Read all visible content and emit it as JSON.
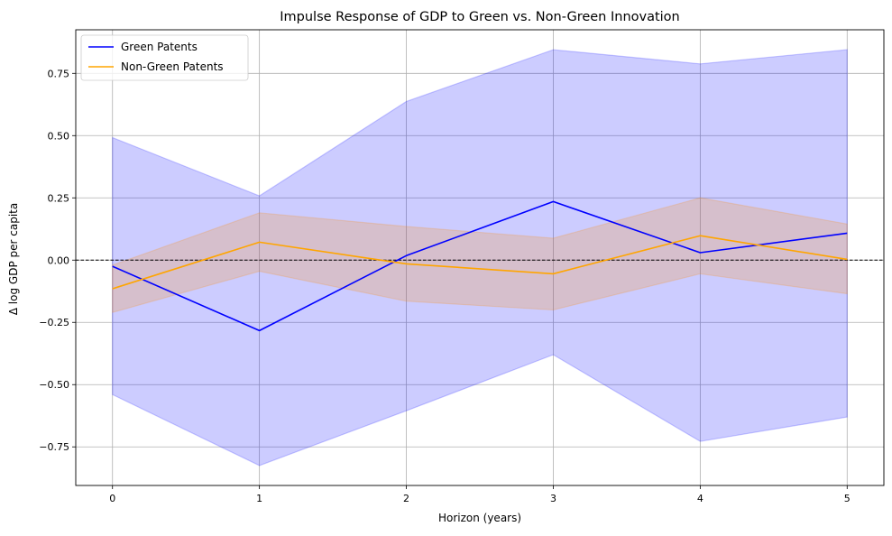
{
  "chart_data": {
    "type": "line",
    "title": "Impulse Response of GDP to Green vs. Non-Green Innovation",
    "xlabel": "Horizon (years)",
    "ylabel": "Δ log GDP per capita",
    "x": [
      0,
      1,
      2,
      3,
      4,
      5
    ],
    "xlim": [
      -0.25,
      5.25
    ],
    "ylim": [
      -0.905,
      0.925
    ],
    "xticks": [
      0,
      1,
      2,
      3,
      4,
      5
    ],
    "xtick_labels": [
      "0",
      "1",
      "2",
      "3",
      "4",
      "5"
    ],
    "yticks": [
      -0.75,
      -0.5,
      -0.25,
      0.0,
      0.25,
      0.5,
      0.75
    ],
    "ytick_labels": [
      "−0.75",
      "−0.50",
      "−0.25",
      "0.00",
      "0.25",
      "0.50",
      "0.75"
    ],
    "grid": true,
    "legend_position": "upper-left",
    "reference_line": 0,
    "series": [
      {
        "name": "Green Patents",
        "color": "#0000ff",
        "band_color": "#0000ff",
        "values": [
          -0.025,
          -0.283,
          0.018,
          0.235,
          0.03,
          0.108
        ],
        "lower": [
          -0.54,
          -0.825,
          -0.605,
          -0.38,
          -0.728,
          -0.63
        ],
        "upper": [
          0.492,
          0.258,
          0.637,
          0.845,
          0.788,
          0.845
        ]
      },
      {
        "name": "Non-Green Patents",
        "color": "#ffa500",
        "band_color": "#ff8c00",
        "values": [
          -0.115,
          0.072,
          -0.015,
          -0.055,
          0.098,
          0.003
        ],
        "lower": [
          -0.21,
          -0.045,
          -0.165,
          -0.2,
          -0.055,
          -0.135
        ],
        "upper": [
          -0.02,
          0.19,
          0.135,
          0.088,
          0.25,
          0.145
        ]
      }
    ]
  }
}
